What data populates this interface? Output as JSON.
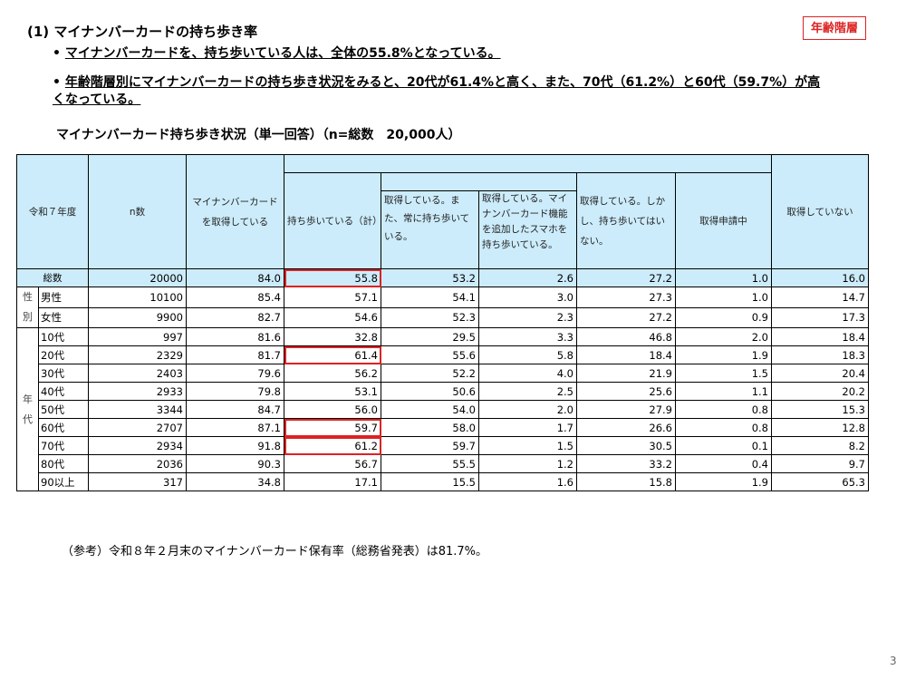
{
  "heading": "(1) マイナンバーカードの持ち歩き率",
  "tag": "年齢階層",
  "bullets": [
    "マイナンバーカードを、持ち歩いている人は、全体の55.8%となっている。",
    "年齢階層別にマイナンバーカードの持ち歩き状況をみると、20代が61.4%と高く、また、70代（61.2%）と60代（59.7%）が高くなっている。"
  ],
  "table_title": "マイナンバーカード持ち歩き状況（単一回答）（n=総数　20,000人）",
  "table": {
    "header": {
      "year": "令和７年度",
      "n": "n数",
      "acquired": "マイナンバーカードを取得している",
      "carrying_total": "持ち歩いている（計）",
      "always": "取得している。また、常に持ち歩いている。",
      "smartphone": "取得している。マイナンバーカード機能を追加したスマホを持ち歩いている。",
      "not_carrying": "取得している。しかし、持ち歩いてはいない。",
      "applying": "取得申請中",
      "not_acquired": "取得していない"
    },
    "total_row": {
      "label": "総数",
      "values": [
        "20000",
        "84.0",
        "55.8",
        "53.2",
        "2.6",
        "27.2",
        "1.0",
        "16.0"
      ]
    },
    "groups": [
      {
        "label": "性別",
        "rows": [
          {
            "label": "男性",
            "values": [
              "10100",
              "85.4",
              "57.1",
              "54.1",
              "3.0",
              "27.3",
              "1.0",
              "14.7"
            ]
          },
          {
            "label": "女性",
            "values": [
              "9900",
              "82.7",
              "54.6",
              "52.3",
              "2.3",
              "27.2",
              "0.9",
              "17.3"
            ]
          }
        ]
      },
      {
        "label": "年代",
        "rows": [
          {
            "label": "10代",
            "values": [
              "997",
              "81.6",
              "32.8",
              "29.5",
              "3.3",
              "46.8",
              "2.0",
              "18.4"
            ]
          },
          {
            "label": "20代",
            "values": [
              "2329",
              "81.7",
              "61.4",
              "55.6",
              "5.8",
              "18.4",
              "1.9",
              "18.3"
            ]
          },
          {
            "label": "30代",
            "values": [
              "2403",
              "79.6",
              "56.2",
              "52.2",
              "4.0",
              "21.9",
              "1.5",
              "20.4"
            ]
          },
          {
            "label": "40代",
            "values": [
              "2933",
              "79.8",
              "53.1",
              "50.6",
              "2.5",
              "25.6",
              "1.1",
              "20.2"
            ]
          },
          {
            "label": "50代",
            "values": [
              "3344",
              "84.7",
              "56.0",
              "54.0",
              "2.0",
              "27.9",
              "0.8",
              "15.3"
            ]
          },
          {
            "label": "60代",
            "values": [
              "2707",
              "87.1",
              "59.7",
              "58.0",
              "1.7",
              "26.6",
              "0.8",
              "12.8"
            ]
          },
          {
            "label": "70代",
            "values": [
              "2934",
              "91.8",
              "61.2",
              "59.7",
              "1.5",
              "30.5",
              "0.1",
              "8.2"
            ]
          },
          {
            "label": "80代",
            "values": [
              "2036",
              "90.3",
              "56.7",
              "55.5",
              "1.2",
              "33.2",
              "0.4",
              "9.7"
            ]
          },
          {
            "label": "90以上",
            "values": [
              "317",
              "34.8",
              "17.1",
              "15.5",
              "1.6",
              "15.8",
              "1.9",
              "65.3"
            ]
          }
        ]
      }
    ]
  },
  "note": "（参考）令和８年２月末のマイナンバーカード保有率（総務省発表）は81.7%。",
  "page_number": "3"
}
